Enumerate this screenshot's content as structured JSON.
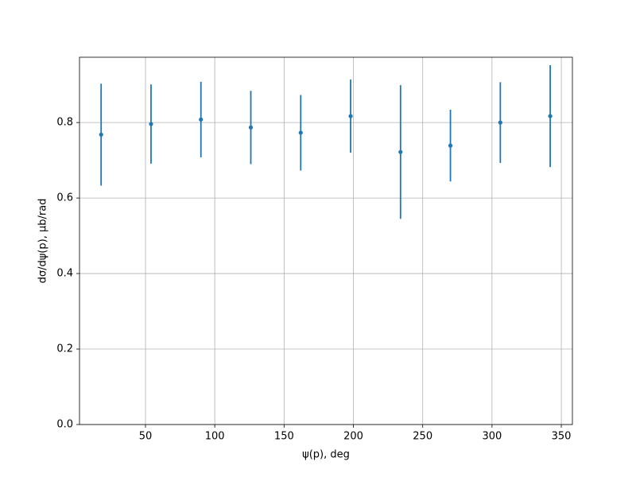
{
  "chart_data": {
    "type": "errorbar",
    "x_label": "ψ(p), deg",
    "y_label": "dσ/dψ(p), μb/rad",
    "x": [
      18,
      54,
      90,
      126,
      162,
      198,
      234,
      270,
      306,
      342
    ],
    "series": [
      {
        "color": "#1f77b4",
        "values": [
          0.768,
          0.796,
          0.808,
          0.787,
          0.773,
          0.817,
          0.722,
          0.739,
          0.8,
          0.817
        ],
        "errors": [
          0.135,
          0.105,
          0.1,
          0.097,
          0.1,
          0.097,
          0.177,
          0.095,
          0.107,
          0.135
        ]
      }
    ],
    "xlim": [
      2.4,
      358
    ],
    "xticks": [
      50,
      100,
      150,
      200,
      250,
      300,
      350
    ],
    "ylim": [
      0,
      0.973
    ],
    "yticks": [
      {
        "value": 0,
        "label": "0.0"
      },
      0.2,
      0.4,
      0.6,
      0.8
    ],
    "grid": true
  }
}
